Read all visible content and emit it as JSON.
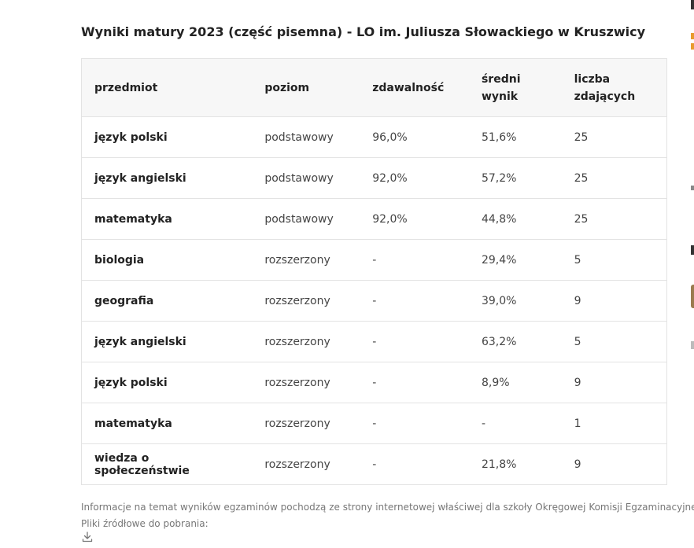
{
  "title": "Wyniki matury 2023 (część pisemna) - LO im. Juliusza Słowackiego w Kruszwicy",
  "table": {
    "headers": {
      "subject": "przedmiot",
      "level": "poziom",
      "pass_rate": "zdawalność",
      "avg_score": "średni wynik",
      "count_line1": "liczba",
      "count_line2": "zdających"
    },
    "rows": [
      {
        "subject": "język polski",
        "level": "podstawowy",
        "pass_rate": "96,0%",
        "avg_score": "51,6%",
        "count": "25"
      },
      {
        "subject": "język angielski",
        "level": "podstawowy",
        "pass_rate": "92,0%",
        "avg_score": "57,2%",
        "count": "25"
      },
      {
        "subject": "matematyka",
        "level": "podstawowy",
        "pass_rate": "92,0%",
        "avg_score": "44,8%",
        "count": "25"
      },
      {
        "subject": "biologia",
        "level": "rozszerzony",
        "pass_rate": "-",
        "avg_score": "29,4%",
        "count": "5"
      },
      {
        "subject": "geografia",
        "level": "rozszerzony",
        "pass_rate": "-",
        "avg_score": "39,0%",
        "count": "9"
      },
      {
        "subject": "język angielski",
        "level": "rozszerzony",
        "pass_rate": "-",
        "avg_score": "63,2%",
        "count": "5"
      },
      {
        "subject": "język polski",
        "level": "rozszerzony",
        "pass_rate": "-",
        "avg_score": "8,9%",
        "count": "9"
      },
      {
        "subject": "matematyka",
        "level": "rozszerzony",
        "pass_rate": "-",
        "avg_score": "-",
        "count": "1"
      },
      {
        "subject": "wiedza o społeczeństwie",
        "level": "rozszerzony",
        "pass_rate": "-",
        "avg_score": "21,8%",
        "count": "9"
      }
    ]
  },
  "footer": {
    "info": "Informacje na temat wyników egzaminów pochodzą ze strony internetowej właściwej dla szkoły Okręgowej Komisji Egzaminacyjnej.",
    "files_label": "Pliki źródłowe do pobrania:",
    "download_icon": "download-icon"
  },
  "colors": {
    "header_bg": "#f7f7f7",
    "border": "#e3e3e3",
    "note_text": "#777777"
  }
}
